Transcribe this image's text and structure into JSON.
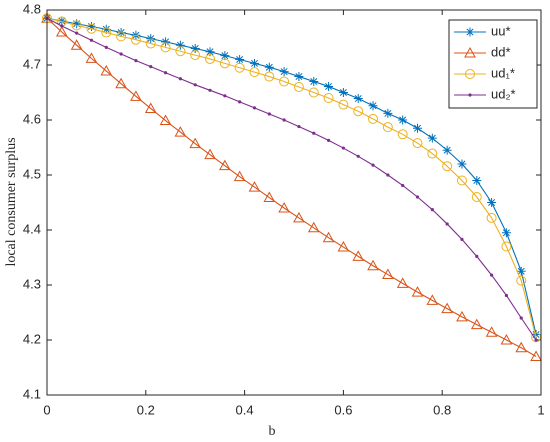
{
  "chart_data": {
    "type": "line",
    "xlabel": "b",
    "ylabel": "local consumer surplus",
    "x": [
      0,
      0.03,
      0.06,
      0.09,
      0.12,
      0.15,
      0.18,
      0.21,
      0.24,
      0.27,
      0.3,
      0.33,
      0.36,
      0.39,
      0.42,
      0.45,
      0.48,
      0.51,
      0.54,
      0.57,
      0.6,
      0.63,
      0.66,
      0.69,
      0.72,
      0.75,
      0.78,
      0.81,
      0.84,
      0.87,
      0.9,
      0.93,
      0.96,
      0.99
    ],
    "series": [
      {
        "name": "uu*",
        "color": "#0072BD",
        "marker": "asterisk",
        "values": [
          4.785,
          4.78,
          4.775,
          4.77,
          4.765,
          4.759,
          4.754,
          4.748,
          4.742,
          4.736,
          4.73,
          4.724,
          4.717,
          4.71,
          4.703,
          4.696,
          4.688,
          4.679,
          4.67,
          4.661,
          4.65,
          4.639,
          4.626,
          4.612,
          4.6,
          4.585,
          4.567,
          4.545,
          4.52,
          4.49,
          4.45,
          4.395,
          4.325,
          4.21
        ]
      },
      {
        "name": "dd*",
        "color": "#D95319",
        "marker": "triangle",
        "values": [
          4.785,
          4.76,
          4.736,
          4.712,
          4.689,
          4.666,
          4.643,
          4.621,
          4.599,
          4.578,
          4.557,
          4.537,
          4.517,
          4.497,
          4.478,
          4.459,
          4.44,
          4.422,
          4.404,
          4.386,
          4.369,
          4.352,
          4.335,
          4.319,
          4.303,
          4.287,
          4.272,
          4.257,
          4.242,
          4.228,
          4.214,
          4.2,
          4.186,
          4.17
        ]
      },
      {
        "name": "ud₁*",
        "color": "#EDB120",
        "marker": "circle",
        "values": [
          4.785,
          4.779,
          4.772,
          4.766,
          4.759,
          4.752,
          4.746,
          4.739,
          4.732,
          4.725,
          4.718,
          4.711,
          4.703,
          4.695,
          4.687,
          4.679,
          4.67,
          4.66,
          4.65,
          4.64,
          4.628,
          4.616,
          4.602,
          4.587,
          4.574,
          4.558,
          4.539,
          4.516,
          4.49,
          4.46,
          4.422,
          4.37,
          4.308,
          4.205
        ]
      },
      {
        "name": "ud₂*",
        "color": "#7E2F8E",
        "marker": "dot",
        "values": [
          4.785,
          4.771,
          4.758,
          4.745,
          4.732,
          4.72,
          4.708,
          4.697,
          4.686,
          4.675,
          4.664,
          4.654,
          4.644,
          4.633,
          4.622,
          4.611,
          4.6,
          4.588,
          4.576,
          4.563,
          4.549,
          4.534,
          4.518,
          4.5,
          4.481,
          4.46,
          4.437,
          4.411,
          4.383,
          4.352,
          4.318,
          4.281,
          4.24,
          4.2
        ]
      }
    ],
    "xlim": [
      0,
      1
    ],
    "xticks": [
      0,
      0.2,
      0.4,
      0.6,
      0.8,
      1
    ],
    "ylim": [
      4.1,
      4.8
    ],
    "yticks": [
      4.1,
      4.2,
      4.3,
      4.4,
      4.5,
      4.6,
      4.7,
      4.8
    ],
    "legend": "upper right",
    "grid": false
  }
}
